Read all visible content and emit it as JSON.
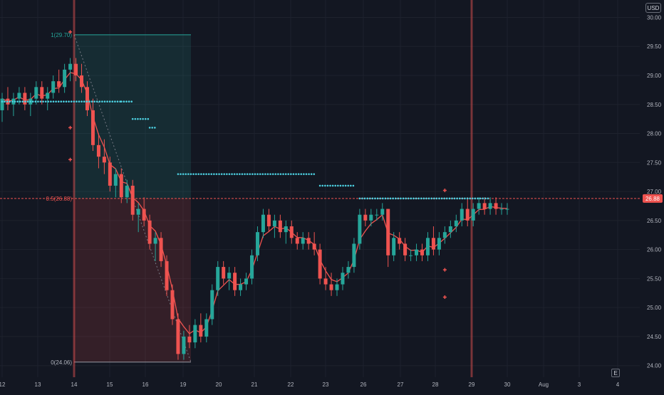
{
  "toolbar": {
    "currency": "USD",
    "scale_button": "E"
  },
  "price_axis": {
    "labels": [
      "30.00",
      "29.50",
      "29.00",
      "28.50",
      "28.00",
      "27.50",
      "27.00",
      "26.50",
      "26.00",
      "25.50",
      "25.00",
      "24.50",
      "24.00"
    ],
    "current_price": "26.88"
  },
  "time_axis": {
    "labels": [
      "12",
      "13",
      "14",
      "15",
      "16",
      "19",
      "20",
      "21",
      "22",
      "23",
      "26",
      "27",
      "28",
      "29",
      "30",
      "Aug",
      "3",
      "4"
    ]
  },
  "fib": {
    "level_1": "1(29.70)",
    "level_05": "0.5(26.88)",
    "level_0": "0(24.06)"
  },
  "colors": {
    "background": "#131722",
    "up": "#26a69a",
    "down": "#ef5350",
    "dots": "#4dd0e1",
    "fib_green": "#26a69a",
    "fib_red": "#ef5350",
    "grid": "#1e222d"
  },
  "chart_data": {
    "type": "candlestick",
    "ylim": [
      23.8,
      30.3
    ],
    "x_ticks": [
      "12",
      "13",
      "14",
      "15",
      "16",
      "19",
      "20",
      "21",
      "22",
      "23",
      "26",
      "27",
      "28",
      "29",
      "30",
      "Aug",
      "3",
      "4"
    ],
    "y_ticks": [
      30.0,
      29.5,
      29.0,
      28.5,
      28.0,
      27.5,
      27.0,
      26.5,
      26.0,
      25.5,
      25.0,
      24.5,
      24.0
    ],
    "candles": [
      [
        28.4,
        28.7,
        28.2,
        28.6
      ],
      [
        28.6,
        28.8,
        28.4,
        28.5
      ],
      [
        28.5,
        28.7,
        28.3,
        28.6
      ],
      [
        28.6,
        28.8,
        28.5,
        28.7
      ],
      [
        28.7,
        28.8,
        28.4,
        28.5
      ],
      [
        28.5,
        28.7,
        28.3,
        28.6
      ],
      [
        28.6,
        28.9,
        28.5,
        28.8
      ],
      [
        28.8,
        28.9,
        28.5,
        28.6
      ],
      [
        28.6,
        28.8,
        28.4,
        28.7
      ],
      [
        28.7,
        29.0,
        28.6,
        28.9
      ],
      [
        28.9,
        29.1,
        28.7,
        28.8
      ],
      [
        28.8,
        29.2,
        28.7,
        29.1
      ],
      [
        29.1,
        29.3,
        28.9,
        29.2
      ],
      [
        29.2,
        29.3,
        28.9,
        29.0
      ],
      [
        29.0,
        29.2,
        28.7,
        28.8
      ],
      [
        28.8,
        28.9,
        28.3,
        28.4
      ],
      [
        28.4,
        28.6,
        27.7,
        27.8
      ],
      [
        27.8,
        28.0,
        27.4,
        27.6
      ],
      [
        27.6,
        27.9,
        27.3,
        27.5
      ],
      [
        27.5,
        27.6,
        27.0,
        27.1
      ],
      [
        27.1,
        27.4,
        26.9,
        27.3
      ],
      [
        27.3,
        27.4,
        26.8,
        26.9
      ],
      [
        26.9,
        27.2,
        26.8,
        27.1
      ],
      [
        27.1,
        27.2,
        26.5,
        26.6
      ],
      [
        26.6,
        26.8,
        26.3,
        26.7
      ],
      [
        26.7,
        26.9,
        26.4,
        26.5
      ],
      [
        26.5,
        26.6,
        26.0,
        26.1
      ],
      [
        26.1,
        26.3,
        25.8,
        26.2
      ],
      [
        26.2,
        26.3,
        25.7,
        25.8
      ],
      [
        25.8,
        25.9,
        25.2,
        25.3
      ],
      [
        25.3,
        25.4,
        24.7,
        24.8
      ],
      [
        24.8,
        24.9,
        24.1,
        24.2
      ],
      [
        24.2,
        24.6,
        24.1,
        24.5
      ],
      [
        24.5,
        24.7,
        24.3,
        24.4
      ],
      [
        24.4,
        24.8,
        24.3,
        24.7
      ],
      [
        24.7,
        24.9,
        24.4,
        24.5
      ],
      [
        24.5,
        24.9,
        24.4,
        24.8
      ],
      [
        24.8,
        25.4,
        24.7,
        25.3
      ],
      [
        25.3,
        25.8,
        25.2,
        25.7
      ],
      [
        25.7,
        25.8,
        25.4,
        25.5
      ],
      [
        25.5,
        25.7,
        25.3,
        25.6
      ],
      [
        25.6,
        25.7,
        25.2,
        25.3
      ],
      [
        25.3,
        25.5,
        25.2,
        25.4
      ],
      [
        25.4,
        25.6,
        25.3,
        25.5
      ],
      [
        25.5,
        26.0,
        25.4,
        25.9
      ],
      [
        25.9,
        26.4,
        25.8,
        26.3
      ],
      [
        26.3,
        26.7,
        26.2,
        26.6
      ],
      [
        26.6,
        26.7,
        26.3,
        26.4
      ],
      [
        26.4,
        26.6,
        26.2,
        26.5
      ],
      [
        26.5,
        26.6,
        26.2,
        26.3
      ],
      [
        26.3,
        26.5,
        26.1,
        26.4
      ],
      [
        26.4,
        26.5,
        26.1,
        26.2
      ],
      [
        26.2,
        26.3,
        26.0,
        26.1
      ],
      [
        26.1,
        26.3,
        26.0,
        26.2
      ],
      [
        26.2,
        26.3,
        26.0,
        26.1
      ],
      [
        26.1,
        26.3,
        25.9,
        26.0
      ],
      [
        26.0,
        26.1,
        25.4,
        25.5
      ],
      [
        25.5,
        25.7,
        25.3,
        25.4
      ],
      [
        25.4,
        25.6,
        25.2,
        25.3
      ],
      [
        25.3,
        25.5,
        25.2,
        25.4
      ],
      [
        25.4,
        25.7,
        25.3,
        25.6
      ],
      [
        25.6,
        25.8,
        25.5,
        25.7
      ],
      [
        25.7,
        26.2,
        25.6,
        26.1
      ],
      [
        26.1,
        26.7,
        26.0,
        26.6
      ],
      [
        26.6,
        26.7,
        26.4,
        26.5
      ],
      [
        26.5,
        26.7,
        26.4,
        26.6
      ],
      [
        26.6,
        26.7,
        26.5,
        26.6
      ],
      [
        26.6,
        26.8,
        26.5,
        26.7
      ],
      [
        26.7,
        26.7,
        25.7,
        25.9
      ],
      [
        25.9,
        26.3,
        25.8,
        26.2
      ],
      [
        26.2,
        26.3,
        26.0,
        26.1
      ],
      [
        26.1,
        26.2,
        25.8,
        25.9
      ],
      [
        25.9,
        26.0,
        25.8,
        25.9
      ],
      [
        25.9,
        26.1,
        25.8,
        26.0
      ],
      [
        26.0,
        26.1,
        25.8,
        25.9
      ],
      [
        25.9,
        26.3,
        25.8,
        26.2
      ],
      [
        26.2,
        26.4,
        25.9,
        26.0
      ],
      [
        26.0,
        26.3,
        25.9,
        26.2
      ],
      [
        26.2,
        26.4,
        26.1,
        26.3
      ],
      [
        26.3,
        26.5,
        26.2,
        26.4
      ],
      [
        26.4,
        26.6,
        26.3,
        26.5
      ],
      [
        26.5,
        26.8,
        26.4,
        26.7
      ],
      [
        26.7,
        26.9,
        26.4,
        26.5
      ],
      [
        26.5,
        26.8,
        26.4,
        26.7
      ],
      [
        26.7,
        26.9,
        26.6,
        26.8
      ],
      [
        26.8,
        26.9,
        26.6,
        26.7
      ],
      [
        26.7,
        26.9,
        26.6,
        26.8
      ],
      [
        26.8,
        26.9,
        26.6,
        26.7
      ],
      [
        26.7,
        26.8,
        26.6,
        26.7
      ],
      [
        26.7,
        26.8,
        26.6,
        26.7
      ]
    ],
    "dot_levels": [
      {
        "x_from": 0,
        "x_to": 21,
        "value": 28.55
      },
      {
        "x_from": 21,
        "x_to": 23,
        "value": 28.55
      },
      {
        "x_from": 23,
        "x_to": 26,
        "value": 28.25
      },
      {
        "x_from": 26,
        "x_to": 27,
        "value": 28.1
      },
      {
        "x_from": 31,
        "x_to": 55,
        "value": 27.3
      },
      {
        "x_from": 56,
        "x_to": 62,
        "value": 27.1
      },
      {
        "x_from": 63,
        "x_to": 86,
        "value": 26.88
      }
    ],
    "markers": [
      {
        "x": 12,
        "value": 29.75
      },
      {
        "x": 12,
        "value": 28.1
      },
      {
        "x": 12,
        "value": 27.55
      },
      {
        "x": 78,
        "value": 27.02
      },
      {
        "x": 78,
        "value": 25.65
      },
      {
        "x": 78,
        "value": 25.18
      }
    ],
    "fib_levels": {
      "top": 29.7,
      "mid": 26.88,
      "bottom": 24.06,
      "x_from": 12,
      "x_to": 31
    },
    "vertical_lines_x": [
      12,
      78
    ]
  }
}
